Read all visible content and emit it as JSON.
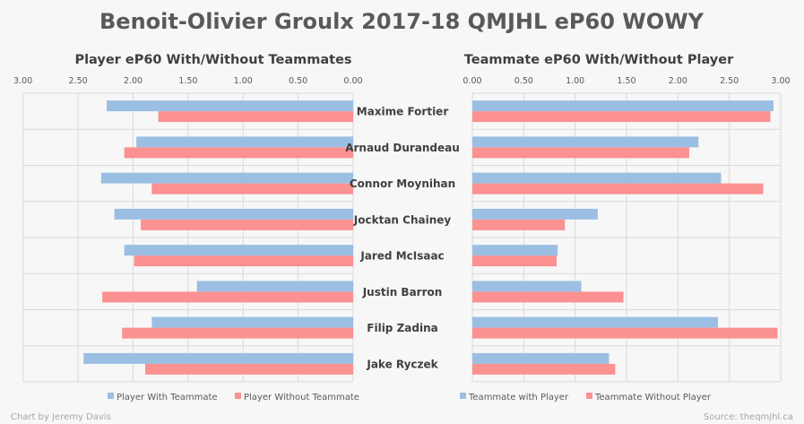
{
  "title": "Benoit-Olivier Groulx 2017-18 QMJHL eP60 WOWY",
  "credit": "Chart by Jeremy Davis",
  "source": "Source: theqmjhl.ca",
  "colors": {
    "with": "#9bbfe3",
    "without": "#fb9191",
    "grid": "#d9d9d9",
    "text": "#595959"
  },
  "chart_data": [
    {
      "type": "bar",
      "orientation": "horizontal-reversed",
      "title": "Player eP60 With/Without Teammates",
      "xlim": [
        0,
        3
      ],
      "ticks": [
        "0.00",
        "0.50",
        "1.00",
        "1.50",
        "2.00",
        "2.50",
        "3.00"
      ],
      "tick_values": [
        0,
        0.5,
        1,
        1.5,
        2,
        2.5,
        3
      ],
      "categories": [
        "Maxime Fortier",
        "Arnaud Durandeau",
        "Connor Moynihan",
        "Jocktan Chainey",
        "Jared McIsaac",
        "Justin Barron",
        "Filip Zadina",
        "Jake Ryczek"
      ],
      "series": [
        {
          "name": "Player With Teammate",
          "values": [
            2.24,
            1.97,
            2.29,
            2.17,
            2.08,
            1.42,
            1.83,
            2.45
          ]
        },
        {
          "name": "Player Without Teammate",
          "values": [
            1.77,
            2.08,
            1.83,
            1.93,
            1.99,
            2.28,
            2.1,
            1.89
          ]
        }
      ],
      "legend": "bottom"
    },
    {
      "type": "bar",
      "orientation": "horizontal",
      "title": "Teammate eP60 With/Without Player",
      "xlim": [
        0,
        3
      ],
      "ticks": [
        "0.00",
        "0.50",
        "1.00",
        "1.50",
        "2.00",
        "2.50",
        "3.00"
      ],
      "tick_values": [
        0,
        0.5,
        1,
        1.5,
        2,
        2.5,
        3
      ],
      "categories": [
        "Maxime Fortier",
        "Arnaud Durandeau",
        "Connor Moynihan",
        "Jocktan Chainey",
        "Jared McIsaac",
        "Justin Barron",
        "Filip Zadina",
        "Jake Ryczek"
      ],
      "series": [
        {
          "name": "Teammate with Player",
          "values": [
            2.93,
            2.2,
            2.42,
            1.22,
            0.83,
            1.06,
            2.39,
            1.33
          ]
        },
        {
          "name": "Teammate Without Player",
          "values": [
            2.9,
            2.11,
            2.83,
            0.9,
            0.82,
            1.47,
            2.97,
            1.39
          ]
        }
      ],
      "legend": "bottom"
    }
  ]
}
